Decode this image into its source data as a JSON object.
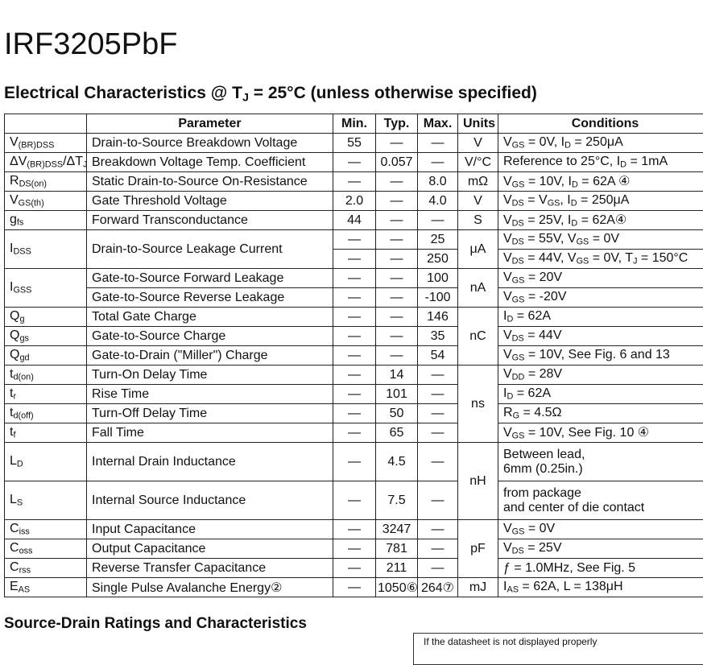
{
  "header": {
    "title": "IRF3205PbF",
    "section": [
      "Electrical Characteristics @ T",
      "J",
      " = 25°C (unless otherwise specified)"
    ]
  },
  "table": {
    "headers": [
      "Parameter",
      "Min.",
      "Typ.",
      "Max.",
      "Units",
      "Conditions"
    ],
    "rows": [
      {
        "symbol": [
          "V",
          "(BR)DSS"
        ],
        "parameter": "Drain-to-Source Breakdown Voltage",
        "min": "55",
        "typ": "—",
        "max": "—",
        "units": "V",
        "conditions": [
          "V",
          "GS",
          " = 0V, I",
          "D",
          " = 250μA"
        ]
      },
      {
        "symbol": [
          "ΔV",
          "(BR)DSS",
          "/ΔT",
          "J"
        ],
        "parameter": "Breakdown Voltage Temp. Coefficient",
        "min": "—",
        "typ": "0.057",
        "max": "—",
        "units": "V/°C",
        "conditions": [
          "Reference to 25°C, I",
          "D",
          " = 1mA"
        ]
      },
      {
        "symbol": [
          "R",
          "DS(on)"
        ],
        "parameter": "Static Drain-to-Source On-Resistance",
        "min": "—",
        "typ": "—",
        "max": "8.0",
        "units": "mΩ",
        "conditions": [
          "V",
          "GS",
          " = 10V, I",
          "D",
          " = 62A   ④"
        ]
      },
      {
        "symbol": [
          "V",
          "GS(th)"
        ],
        "parameter": "Gate Threshold Voltage",
        "min": "2.0",
        "typ": "—",
        "max": "4.0",
        "units": "V",
        "conditions": [
          "V",
          "DS",
          " = V",
          "GS",
          ", I",
          "D",
          " = 250μA"
        ]
      },
      {
        "symbol": [
          "g",
          "fs"
        ],
        "parameter": "Forward Transconductance",
        "min": "44",
        "typ": "—",
        "max": "—",
        "units": "S",
        "conditions": [
          "V",
          "DS",
          " = 25V, I",
          "D",
          " = 62A④"
        ]
      },
      {
        "symbol": [
          "I",
          "DSS"
        ],
        "parameter": "Drain-to-Source Leakage Current",
        "min": "—",
        "typ": "—",
        "max": "25",
        "units": "μA",
        "conditions": [
          "V",
          "DS",
          " = 55V, V",
          "GS",
          " = 0V"
        ]
      },
      {
        "min": "—",
        "typ": "—",
        "max": "250",
        "conditions": [
          "V",
          "DS",
          " = 44V, V",
          "GS",
          " = 0V, T",
          "J",
          " = 150°C"
        ]
      },
      {
        "symbol": [
          "I",
          "GSS"
        ],
        "parameter": "Gate-to-Source Forward Leakage",
        "min": "—",
        "typ": "—",
        "max": "100",
        "units": "nA",
        "conditions": [
          "V",
          "GS",
          " = 20V"
        ]
      },
      {
        "parameter": "Gate-to-Source Reverse Leakage",
        "min": "—",
        "typ": "—",
        "max": "-100",
        "conditions": [
          "V",
          "GS",
          " = -20V"
        ]
      },
      {
        "symbol": [
          "Q",
          "g"
        ],
        "parameter": "Total Gate Charge",
        "min": "—",
        "typ": "—",
        "max": "146",
        "units": "nC",
        "conditions": [
          "I",
          "D",
          " = 62A"
        ]
      },
      {
        "symbol": [
          "Q",
          "gs"
        ],
        "parameter": "Gate-to-Source Charge",
        "min": "—",
        "typ": "—",
        "max": "35",
        "conditions": [
          "V",
          "DS",
          " = 44V"
        ]
      },
      {
        "symbol": [
          "Q",
          "gd"
        ],
        "parameter": "Gate-to-Drain (\"Miller\") Charge",
        "min": "—",
        "typ": "—",
        "max": "54",
        "conditions": [
          "V",
          "GS",
          " = 10V, See Fig. 6 and 13"
        ]
      },
      {
        "symbol": [
          "t",
          "d(on)"
        ],
        "parameter": "Turn-On Delay Time",
        "min": "—",
        "typ": "14",
        "max": "—",
        "units": "ns",
        "conditions": [
          "V",
          "DD",
          " = 28V"
        ]
      },
      {
        "symbol": [
          "t",
          "r"
        ],
        "parameter": "Rise Time",
        "min": "—",
        "typ": "101",
        "max": "—",
        "conditions": [
          "I",
          "D",
          " = 62A"
        ]
      },
      {
        "symbol": [
          "t",
          "d(off)"
        ],
        "parameter": "Turn-Off Delay Time",
        "min": "—",
        "typ": "50",
        "max": "—",
        "conditions": [
          "R",
          "G",
          " = 4.5Ω"
        ]
      },
      {
        "symbol": [
          "t",
          "f"
        ],
        "parameter": "Fall Time",
        "min": "—",
        "typ": "65",
        "max": "—",
        "conditions": [
          "V",
          "GS",
          " = 10V, See Fig. 10 ④"
        ]
      },
      {
        "symbol": [
          "L",
          "D"
        ],
        "parameter": "Internal Drain Inductance",
        "min": "—",
        "typ": "4.5",
        "max": "—",
        "units": "nH",
        "conditions": [
          "Between lead,\n6mm (0.25in.)"
        ]
      },
      {
        "symbol": [
          "L",
          "S"
        ],
        "parameter": "Internal Source Inductance",
        "min": "—",
        "typ": "7.5",
        "max": "—",
        "conditions": [
          "from package\nand center of die contact"
        ]
      },
      {
        "symbol": [
          "C",
          "iss"
        ],
        "parameter": "Input Capacitance",
        "min": "—",
        "typ": "3247",
        "max": "—",
        "units": "pF",
        "conditions": [
          "V",
          "GS",
          " = 0V"
        ]
      },
      {
        "symbol": [
          "C",
          "oss"
        ],
        "parameter": "Output Capacitance",
        "min": "—",
        "typ": "781",
        "max": "—",
        "conditions": [
          "V",
          "DS",
          " = 25V"
        ]
      },
      {
        "symbol": [
          "C",
          "rss"
        ],
        "parameter": "Reverse Transfer Capacitance",
        "min": "—",
        "typ": "211",
        "max": "—",
        "conditions": [
          "ƒ = 1.0MHz, See Fig. 5"
        ]
      },
      {
        "symbol": [
          "E",
          "AS"
        ],
        "parameter": "Single Pulse Avalanche Energy②",
        "min": "—",
        "typ": "1050⑥",
        "max": "264⑦",
        "units": "mJ",
        "conditions": [
          "I",
          "AS",
          " = 62A, L = 138μH"
        ]
      }
    ]
  },
  "footer": {
    "section": "Source-Drain Ratings and Characteristics",
    "note": "If the datasheet is not displayed properly"
  }
}
